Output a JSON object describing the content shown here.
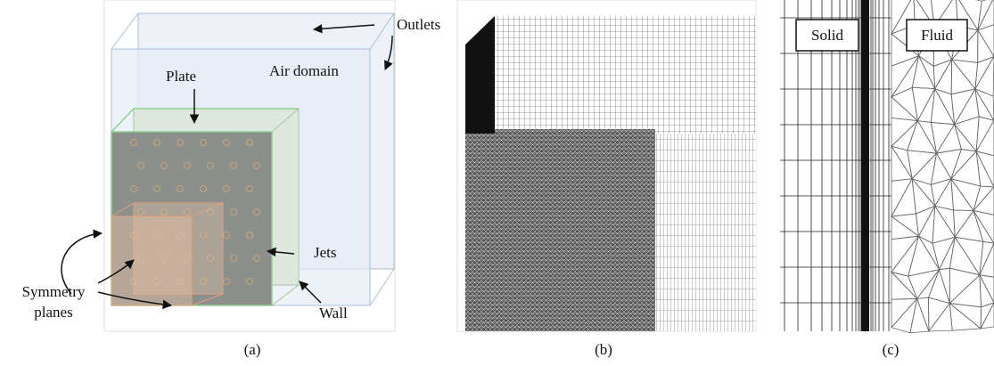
{
  "panels": [
    {
      "caption": "(a)",
      "annotations": {
        "outlets": "Outlets",
        "air_domain": "Air domain",
        "plate": "Plate",
        "jets": "Jets",
        "symmetry": [
          "Symmetry",
          "planes"
        ],
        "wall": "Wall"
      }
    },
    {
      "caption": "(b)"
    },
    {
      "caption": "(c)",
      "annotations": {
        "solid": "Solid",
        "fluid": "Fluid"
      }
    }
  ]
}
